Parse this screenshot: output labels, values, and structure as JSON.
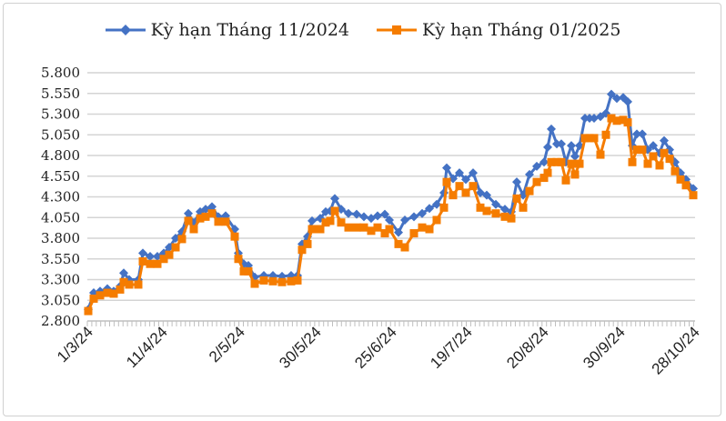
{
  "chart_data": {
    "type": "line",
    "title": "",
    "xlabel": "",
    "ylabel": "",
    "ylim": [
      2800,
      5800
    ],
    "yticks": [
      "2.800",
      "3.050",
      "3.300",
      "3.550",
      "3.800",
      "4.050",
      "4.300",
      "4.550",
      "4.800",
      "5.050",
      "5.300",
      "5.550",
      "5.800"
    ],
    "xtick_labels": [
      "1/3/24",
      "11/4/24",
      "2/5/24",
      "30/5/24",
      "25/6/24",
      "19/7/24",
      "20/8/24",
      "30/9/24",
      "28/10/24"
    ],
    "grid": true,
    "legend_position": "top",
    "series": [
      {
        "name": "Kỳ hạn Tháng 11/2024",
        "color": "#4472C4",
        "marker": "diamond",
        "values": [
          2940,
          3140,
          3160,
          3190,
          3160,
          3220,
          3380,
          3300,
          3300,
          3620,
          3580,
          3580,
          3620,
          3690,
          3800,
          3880,
          4100,
          3990,
          4120,
          4150,
          4180,
          4060,
          4070,
          3910,
          3620,
          3490,
          3470,
          3330,
          3350,
          3350,
          3340,
          3350,
          3350,
          3730,
          3820,
          4010,
          4040,
          4120,
          4130,
          4280,
          4150,
          4100,
          4090,
          4060,
          4040,
          4070,
          4090,
          4020,
          3870,
          4020,
          4060,
          4100,
          4160,
          4210,
          4350,
          4650,
          4520,
          4590,
          4510,
          4590,
          4350,
          4320,
          4210,
          4150,
          4120,
          4480,
          4320,
          4570,
          4670,
          4720,
          4900,
          5120,
          4940,
          4940,
          4720,
          4920,
          4790,
          4920,
          5250,
          5250,
          5250,
          5270,
          5310,
          5540,
          5490,
          5500,
          5450,
          4920,
          5060,
          5060,
          4870,
          4920,
          4830,
          4980,
          4870,
          4720,
          4590,
          4510,
          4400
        ]
      },
      {
        "name": "Kỳ hạn Tháng 01/2025",
        "color": "#F57C00",
        "marker": "square",
        "values": [
          2920,
          3070,
          3110,
          3140,
          3130,
          3180,
          3270,
          3240,
          3240,
          3520,
          3490,
          3490,
          3550,
          3600,
          3690,
          3790,
          4010,
          3910,
          4040,
          4060,
          4100,
          4000,
          4000,
          3820,
          3550,
          3400,
          3400,
          3250,
          3290,
          3280,
          3270,
          3280,
          3290,
          3660,
          3730,
          3910,
          3910,
          3990,
          4010,
          4130,
          3990,
          3930,
          3930,
          3930,
          3890,
          3930,
          3860,
          3910,
          3730,
          3690,
          3860,
          3930,
          3910,
          4020,
          4170,
          4480,
          4320,
          4430,
          4350,
          4430,
          4170,
          4130,
          4100,
          4060,
          4040,
          4280,
          4170,
          4370,
          4480,
          4530,
          4590,
          4720,
          4720,
          4720,
          4500,
          4700,
          4570,
          4700,
          5010,
          5010,
          5010,
          4810,
          5050,
          5250,
          5220,
          5230,
          5200,
          4720,
          4870,
          4870,
          4700,
          4790,
          4680,
          4830,
          4760,
          4610,
          4510,
          4440,
          4320
        ]
      }
    ]
  }
}
